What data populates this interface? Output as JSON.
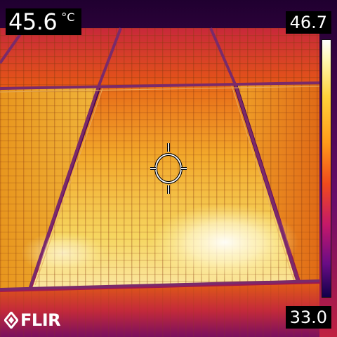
{
  "spot": {
    "value": "45.6",
    "unit": "°C"
  },
  "scale": {
    "max": "46.7",
    "min": "33.0"
  },
  "brand": {
    "logo_text": "FLIR"
  },
  "icons": {
    "reticle": "crosshair-icon",
    "logo_mark": "flir-logo-icon"
  },
  "palette": {
    "hot": "#fff8d0",
    "warm": "#ffd23a",
    "mid": "#f04a1c",
    "cool": "#6a0c86",
    "cold": "#12004a"
  }
}
